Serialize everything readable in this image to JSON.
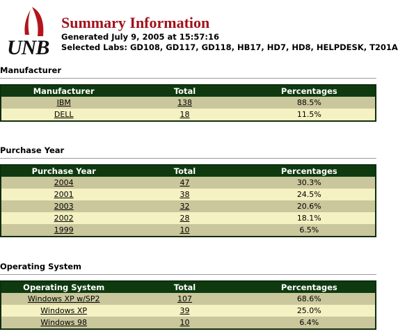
{
  "header": {
    "logo_text": "UNB",
    "title": "Summary Information",
    "generated": "Generated July 9, 2005 at 15:57:16",
    "selected_labs": "Selected Labs: GD108, GD117, GD118, HB17, HD7, HD8, HELPDESK, T201A"
  },
  "sections": [
    {
      "title": "Manufacturer",
      "columns": [
        "Manufacturer",
        "Total",
        "Percentages"
      ],
      "rows": [
        {
          "name": "IBM",
          "total": "138",
          "pct": "88.5%"
        },
        {
          "name": "DELL",
          "total": "18",
          "pct": "11.5%"
        }
      ]
    },
    {
      "title": "Purchase Year",
      "columns": [
        "Purchase Year",
        "Total",
        "Percentages"
      ],
      "rows": [
        {
          "name": "2004",
          "total": "47",
          "pct": "30.3%"
        },
        {
          "name": "2001",
          "total": "38",
          "pct": "24.5%"
        },
        {
          "name": "2003",
          "total": "32",
          "pct": "20.6%"
        },
        {
          "name": "2002",
          "total": "28",
          "pct": "18.1%"
        },
        {
          "name": "1999",
          "total": "10",
          "pct": "6.5%"
        }
      ]
    },
    {
      "title": "Operating System",
      "columns": [
        "Operating System",
        "Total",
        "Percentages"
      ],
      "rows": [
        {
          "name": "Windows XP w/SP2",
          "total": "107",
          "pct": "68.6%"
        },
        {
          "name": "Windows XP",
          "total": "39",
          "pct": "25.0%"
        },
        {
          "name": "Windows 98",
          "total": "10",
          "pct": "6.4%"
        }
      ]
    }
  ]
}
